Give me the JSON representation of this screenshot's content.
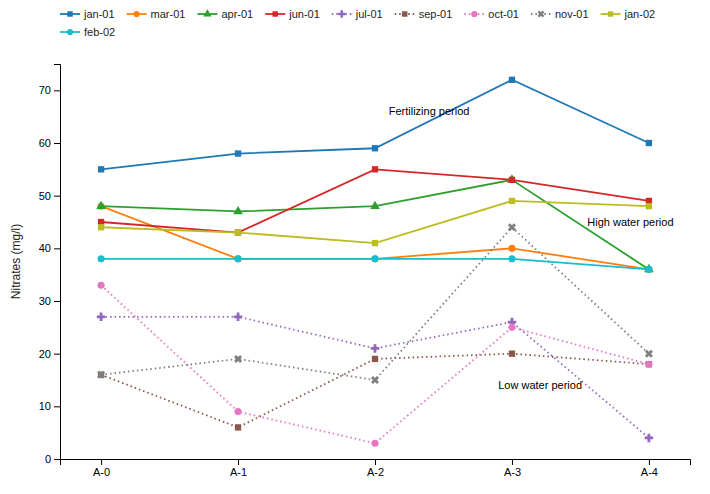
{
  "chart_data": {
    "type": "line",
    "categories": [
      "A-0",
      "A-1",
      "A-2",
      "A-3",
      "A-4"
    ],
    "ylabel": "Nitrates (mg/l)",
    "ylim": [
      0,
      75
    ],
    "yticks": [
      0,
      10,
      20,
      30,
      40,
      50,
      60,
      70
    ],
    "grid": false,
    "legend": "top",
    "annotations": [
      {
        "text": "Fertilizing period",
        "x": 2.1,
        "y": 66
      },
      {
        "text": "High water period",
        "x": 3.55,
        "y": 45
      },
      {
        "text": "Low water period",
        "x": 2.9,
        "y": 14
      }
    ],
    "series": [
      {
        "name": "jan-01",
        "values": [
          55,
          58,
          59,
          72,
          60
        ],
        "marker": "square",
        "line_style": "solid"
      },
      {
        "name": "mar-01",
        "values": [
          48,
          38,
          38,
          40,
          36
        ],
        "marker": "circle",
        "line_style": "solid"
      },
      {
        "name": "apr-01",
        "values": [
          48,
          47,
          48,
          53,
          36
        ],
        "marker": "triangle",
        "line_style": "solid"
      },
      {
        "name": "jun-01",
        "values": [
          45,
          43,
          55,
          53,
          49
        ],
        "marker": "square",
        "line_style": "solid"
      },
      {
        "name": "jul-01",
        "values": [
          27,
          27,
          21,
          26,
          4
        ],
        "marker": "plus",
        "line_style": "dotted"
      },
      {
        "name": "sep-01",
        "values": [
          16,
          6,
          19,
          20,
          18
        ],
        "marker": "square",
        "line_style": "dotted"
      },
      {
        "name": "oct-01",
        "values": [
          33,
          9,
          3,
          25,
          18
        ],
        "marker": "circle",
        "line_style": "dotted"
      },
      {
        "name": "nov-01",
        "values": [
          16,
          19,
          15,
          44,
          20
        ],
        "marker": "x",
        "line_style": "dotted"
      },
      {
        "name": "jan-02",
        "values": [
          44,
          43,
          41,
          49,
          48
        ],
        "marker": "square",
        "line_style": "solid"
      },
      {
        "name": "feb-02",
        "values": [
          38,
          38,
          38,
          38,
          36
        ],
        "marker": "circle",
        "line_style": "solid"
      }
    ]
  }
}
